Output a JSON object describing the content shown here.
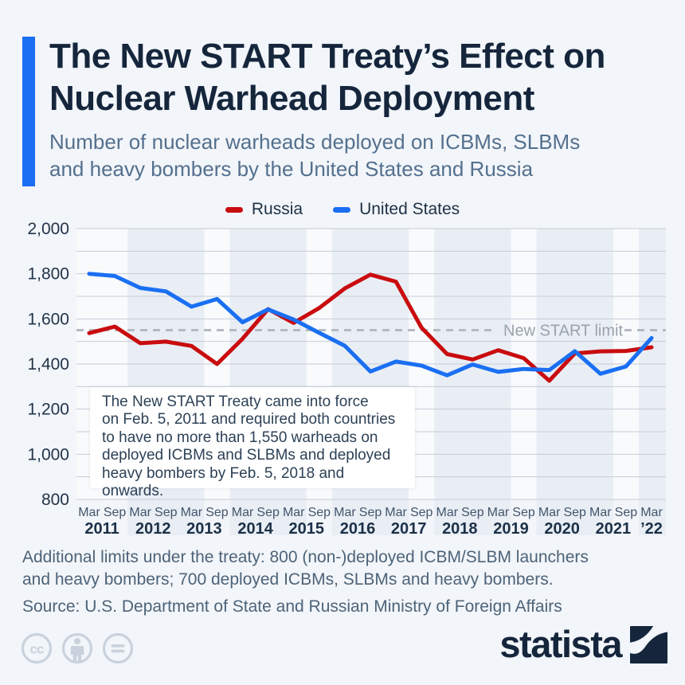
{
  "header": {
    "title_line1": "The New START Treaty’s Effect on",
    "title_line2": "Nuclear Warhead Deployment",
    "subtitle_line1": "Number of nuclear warheads deployed on ICBMs, SLBMs",
    "subtitle_line2": "and heavy bombers by the United States and Russia"
  },
  "chart_data": {
    "type": "line",
    "months": [
      "Mar",
      "Sep",
      "Mar",
      "Sep",
      "Mar",
      "Sep",
      "Mar",
      "Sep",
      "Mar",
      "Sep",
      "Mar",
      "Sep",
      "Mar",
      "Sep",
      "Mar",
      "Sep",
      "Mar",
      "Sep",
      "Mar",
      "Sep",
      "Mar",
      "Sep",
      "Mar"
    ],
    "year_labels": [
      {
        "label": "2011",
        "from": 0,
        "to": 1,
        "shaded": false
      },
      {
        "label": "2012",
        "from": 2,
        "to": 3,
        "shaded": true
      },
      {
        "label": "2013",
        "from": 4,
        "to": 5,
        "shaded": false
      },
      {
        "label": "2014",
        "from": 6,
        "to": 7,
        "shaded": true
      },
      {
        "label": "2015",
        "from": 8,
        "to": 9,
        "shaded": false
      },
      {
        "label": "2016",
        "from": 10,
        "to": 11,
        "shaded": true
      },
      {
        "label": "2017",
        "from": 12,
        "to": 13,
        "shaded": false
      },
      {
        "label": "2018",
        "from": 14,
        "to": 15,
        "shaded": true
      },
      {
        "label": "2019",
        "from": 16,
        "to": 17,
        "shaded": false
      },
      {
        "label": "2020",
        "from": 18,
        "to": 19,
        "shaded": true
      },
      {
        "label": "2021",
        "from": 20,
        "to": 21,
        "shaded": false
      },
      {
        "label": "’22",
        "from": 22,
        "to": 22,
        "shaded": true
      }
    ],
    "ylim": [
      800,
      2000
    ],
    "gridline_step": 100,
    "yticks": [
      {
        "value": 800,
        "label": "800"
      },
      {
        "value": 1000,
        "label": "1,000"
      },
      {
        "value": 1200,
        "label": "1,200"
      },
      {
        "value": 1400,
        "label": "1,400"
      },
      {
        "value": 1600,
        "label": "1,600"
      },
      {
        "value": 1800,
        "label": "1,800"
      },
      {
        "value": 2000,
        "label": "2,000"
      }
    ],
    "series": [
      {
        "name": "Russia",
        "color": "#c90c0f",
        "values": [
          1537,
          1566,
          1492,
          1499,
          1480,
          1400,
          1512,
          1643,
          1582,
          1648,
          1735,
          1796,
          1765,
          1561,
          1444,
          1420,
          1461,
          1426,
          1326,
          1447,
          1456,
          1458,
          1474
        ]
      },
      {
        "name": "United States",
        "color": "#1a6ff2",
        "values": [
          1800,
          1790,
          1737,
          1722,
          1654,
          1688,
          1585,
          1642,
          1597,
          1538,
          1481,
          1367,
          1411,
          1393,
          1350,
          1398,
          1365,
          1378,
          1373,
          1457,
          1357,
          1389,
          1515
        ]
      }
    ],
    "limit_line": {
      "value": 1550,
      "label": "New START limit",
      "color": "#b4bac3",
      "label_color": "#9aa2ad"
    },
    "annotation": {
      "lines": [
        "The New START Treaty came into force",
        "on Feb. 5, 2011 and required both countries",
        "to have no more than 1,550 warheads on",
        "deployed ICBMs and SLBMs and deployed",
        "heavy bombers by Feb. 5, 2018 and onwards."
      ]
    },
    "legend_position": "top",
    "grid": true
  },
  "footer": {
    "note_line1": "Additional limits under the treaty: 800 (non-)deployed ICBM/SLBM launchers",
    "note_line2": "and heavy bombers; 700 deployed ICBMs, SLBMs and heavy bombers.",
    "source": "Source: U.S. Department of State and Russian Ministry of Foreign Affairs"
  },
  "branding": {
    "logo_text": "statista",
    "license_icons": [
      "cc-icon",
      "attribution-icon",
      "equal-icon"
    ],
    "colors": {
      "accent": "#1a6ff2",
      "title": "#15263c",
      "background": "#f2f5f9",
      "stripe": "#e9eef5",
      "plot_background": "#f8fafc",
      "gridline": "#c6ccd6"
    }
  }
}
